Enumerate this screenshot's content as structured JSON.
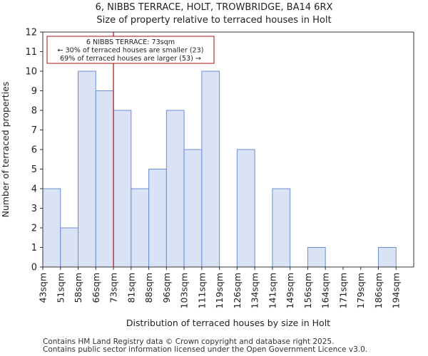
{
  "header": {
    "title": "6, NIBBS TERRACE, HOLT, TROWBRIDGE, BA14 6RX",
    "subtitle": "Size of property relative to terraced houses in Holt"
  },
  "footer": {
    "line1": "Contains HM Land Registry data © Crown copyright and database right 2025.",
    "line2": "Contains public sector information licensed under the Open Government Licence v3.0."
  },
  "chart_data": {
    "type": "bar",
    "categories": [
      "43sqm",
      "51sqm",
      "58sqm",
      "66sqm",
      "73sqm",
      "81sqm",
      "88sqm",
      "96sqm",
      "103sqm",
      "111sqm",
      "119sqm",
      "126sqm",
      "134sqm",
      "141sqm",
      "149sqm",
      "156sqm",
      "164sqm",
      "171sqm",
      "179sqm",
      "186sqm",
      "194sqm"
    ],
    "values": [
      4,
      2,
      10,
      9,
      8,
      4,
      5,
      8,
      6,
      10,
      0,
      6,
      0,
      4,
      0,
      1,
      0,
      0,
      0,
      1,
      0
    ],
    "xlabel": "Distribution of terraced houses by size in Holt",
    "ylabel": "Number of terraced properties",
    "ylim": [
      0,
      12
    ],
    "yticks": [
      0,
      1,
      2,
      3,
      4,
      5,
      6,
      7,
      8,
      9,
      10,
      11,
      12
    ],
    "grid": false,
    "bar_color": "#dae3f5",
    "bar_edge_color": "#6b8fd6",
    "marker": {
      "category_index": 4,
      "color": "#aa1111",
      "annotation_lines": [
        "6 NIBBS TERRACE: 73sqm",
        "← 30% of terraced houses are smaller (23)",
        "69% of terraced houses are larger (53) →"
      ]
    }
  }
}
